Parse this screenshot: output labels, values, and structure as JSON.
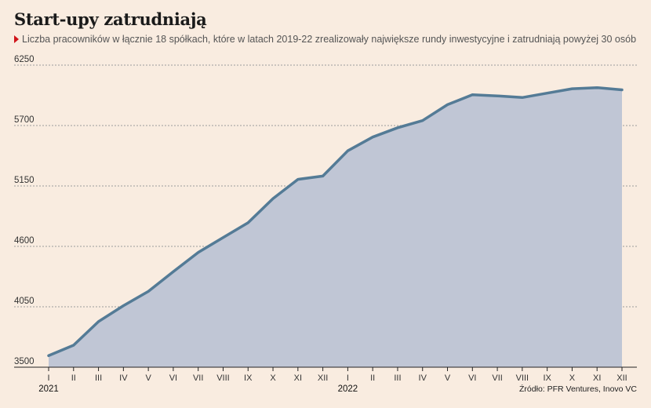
{
  "chart_data": {
    "type": "area",
    "title": "Start-upy zatrudniają",
    "subtitle": "Liczba pracowników w łącznie 18 spółkach, które w latach 2019-22 zrealizowały największe rundy inwestycyjne i zatrudniają powyżej 30 osób",
    "source": "Źródło: PFR Ventures, Inovo VC",
    "ylim": [
      3500,
      6250
    ],
    "yticks": [
      "6250",
      "5700",
      "5150",
      "4600",
      "4050",
      "3500"
    ],
    "x": [
      "I",
      "II",
      "III",
      "IV",
      "V",
      "VI",
      "VII",
      "VIII",
      "IX",
      "X",
      "XI",
      "XII",
      "I",
      "II",
      "III",
      "IV",
      "V",
      "VI",
      "VII",
      "VIII",
      "IX",
      "X",
      "XI",
      "XII"
    ],
    "years": [
      {
        "label": "2021",
        "index": 0
      },
      {
        "label": "2022",
        "index": 12
      }
    ],
    "values": [
      3605,
      3700,
      3915,
      4060,
      4190,
      4370,
      4545,
      4680,
      4815,
      5035,
      5210,
      5240,
      5470,
      5595,
      5680,
      5745,
      5890,
      5980,
      5970,
      5955,
      5995,
      6035,
      6045,
      6025
    ],
    "grid": true,
    "colors": {
      "line": "#547b96",
      "fill": "#c0c6d5",
      "grid": "#9b9b9b"
    }
  },
  "icons": {
    "subtitle_marker": "red-triangle-icon"
  }
}
